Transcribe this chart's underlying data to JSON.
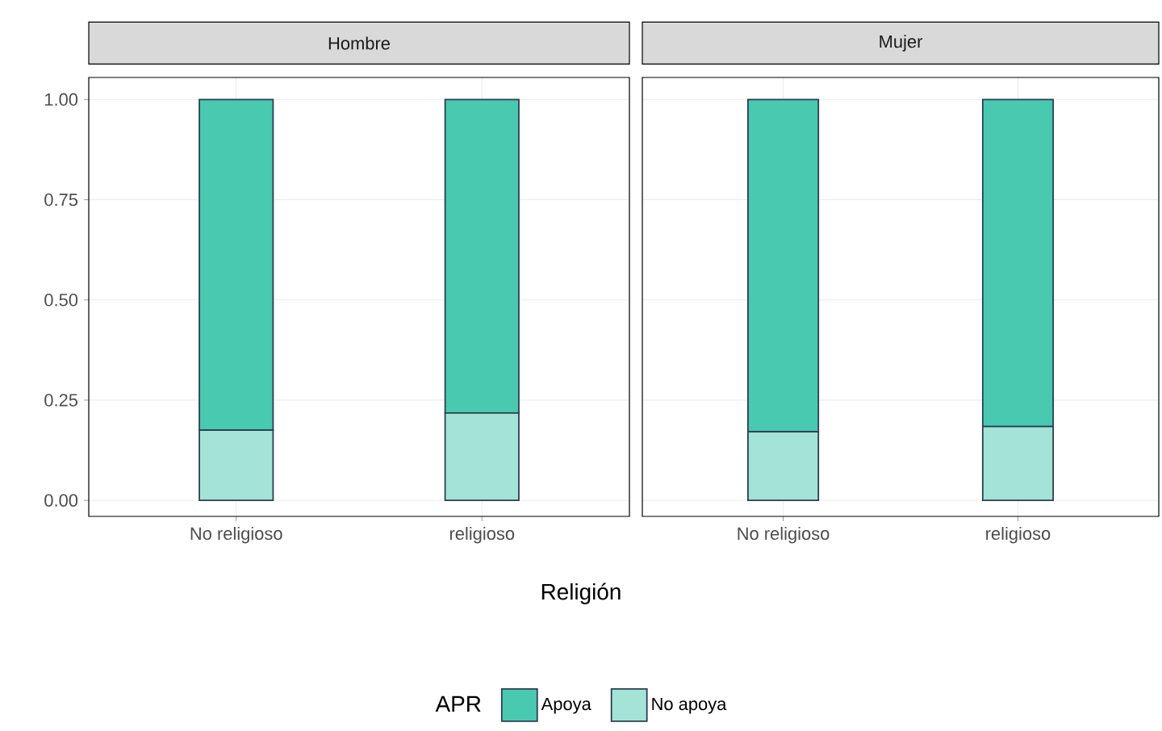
{
  "chart_data": [
    {
      "type": "bar",
      "title": "Hombre",
      "xlabel": "Religión",
      "legend_title": "APR",
      "legend": "bottom",
      "stacked": true,
      "grid": true,
      "categories": [
        "No religioso",
        "religioso"
      ],
      "series": [
        {
          "name": "No apoya",
          "color": "#a3e4d7",
          "values": [
            0.175,
            0.218
          ]
        },
        {
          "name": "Apoya",
          "color": "#48c9b0",
          "values": [
            0.825,
            0.782
          ]
        }
      ],
      "ylim": [
        -0.04,
        1.055
      ],
      "yticks": [
        {
          "value": 0,
          "label": "0.00"
        },
        {
          "value": 0.25,
          "label": "0.25"
        },
        {
          "value": 0.5,
          "label": "0.50"
        },
        {
          "value": 0.75,
          "label": "0.75"
        },
        {
          "value": 1,
          "label": "1.00"
        }
      ]
    },
    {
      "type": "bar",
      "title": "Mujer",
      "stacked": true,
      "grid": true,
      "tick_labels": "x",
      "categories": [
        "No religioso",
        "religioso"
      ],
      "series": [
        {
          "color": "#a3e4d7",
          "values": [
            0.171,
            0.184
          ]
        },
        {
          "color": "#48c9b0",
          "values": [
            0.829,
            0.816
          ]
        }
      ],
      "ylim": [
        -0.04,
        1.055
      ],
      "yticks": [
        0,
        0.25,
        0.5,
        0.75,
        1
      ]
    }
  ]
}
